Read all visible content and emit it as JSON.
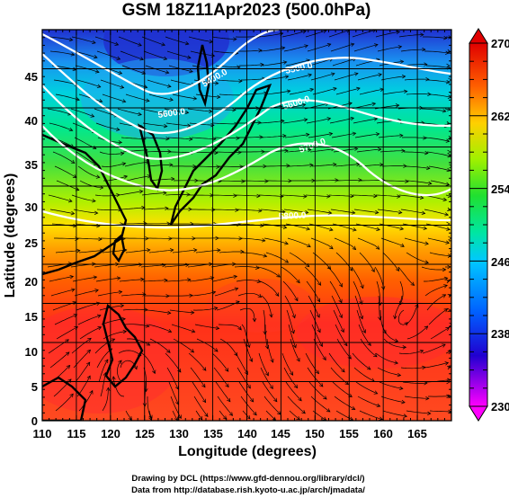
{
  "title": "GSM 18Z11Apr2023 (500.0hPa)",
  "x_axis": {
    "label": "Longitude (degrees)",
    "range": [
      110,
      170
    ],
    "ticks": [
      "110",
      "115",
      "120",
      "125",
      "130",
      "135",
      "140",
      "145",
      "150",
      "155",
      "160",
      "165"
    ]
  },
  "y_axis": {
    "label": "Latitude  (degrees)",
    "range": [
      0,
      50
    ],
    "ticks": [
      "0",
      "5",
      "10",
      "15",
      "20",
      "25",
      "30",
      "35",
      "40",
      "45"
    ]
  },
  "colorbar": {
    "range": [
      230,
      270
    ],
    "labels": [
      "270",
      "262",
      "254",
      "246",
      "238",
      "230"
    ],
    "colors": [
      "#ff00ff",
      "#0000ff",
      "#00c8ff",
      "#00e678",
      "#a0f000",
      "#ffd000",
      "#ff8000",
      "#ff2000"
    ]
  },
  "height_contours": [
    {
      "label": "5400.0"
    },
    {
      "label": "5500.0"
    },
    {
      "label": "5600.0"
    },
    {
      "label": "5700.0"
    },
    {
      "label": "5800.0"
    }
  ],
  "credits": {
    "line1": "Drawing by DCL (https://www.gfd-dennou.org/library/dcl/)",
    "line2": "Data from http://database.rish.kyoto-u.ac.jp/arch/jmadata/"
  },
  "chart_data": {
    "type": "map",
    "field": "500 hPa temperature (K) with geopotential height contours and wind streamlines",
    "xlabel": "Longitude (degrees)",
    "ylabel": "Latitude  (degrees)",
    "xlim": [
      110,
      170
    ],
    "ylim": [
      0,
      50
    ],
    "colorbar_range": [
      230,
      270
    ],
    "height_contour_levels": [
      5400,
      5500,
      5600,
      5700,
      5800
    ],
    "grid": true
  }
}
